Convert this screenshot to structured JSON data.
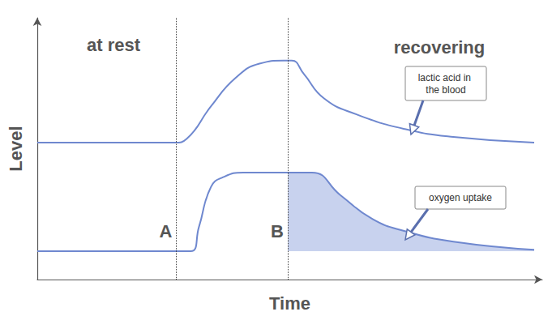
{
  "chart_data": {
    "type": "line",
    "x_label": "Time",
    "y_label": "Level",
    "xlim": [
      0,
      100
    ],
    "ylim": [
      0,
      100
    ],
    "xticks": [],
    "yticks": [],
    "tick_labels": false,
    "grid": false,
    "series": [
      {
        "name": "lactic acid in the blood",
        "color": "#6f88cf",
        "x": [
          0,
          27.2,
          29.6,
          34.4,
          39.2,
          44,
          48.8,
          50.4,
          52.8,
          56.8,
          63.2,
          72.8,
          82.4,
          98.4
        ],
        "values": [
          52.3,
          52.3,
          53.8,
          66.2,
          76.9,
          82.5,
          83.7,
          83.7,
          78.5,
          69.2,
          63.1,
          57.5,
          54.5,
          52.3
        ]
      },
      {
        "name": "oxygen uptake",
        "color": "#6f88cf",
        "x": [
          0,
          30.4,
          32,
          34.4,
          36.8,
          40.8,
          49.6,
          54.4,
          60,
          66.4,
          72.8,
          82.4,
          98.4
        ],
        "values": [
          10.8,
          10.8,
          20,
          35.4,
          39.1,
          40.9,
          40.9,
          40.9,
          32.3,
          23.1,
          18.5,
          14.5,
          11.4
        ]
      }
    ],
    "markers": [
      {
        "label": "A",
        "x": 27.5
      },
      {
        "label": "B",
        "x": 49.6
      }
    ],
    "shaded_region": {
      "series": "oxygen uptake",
      "from_x": 49.6,
      "to_x": 98.4,
      "color": "#c8d2ee"
    },
    "annotations": [
      "at rest",
      "recovering"
    ]
  }
}
